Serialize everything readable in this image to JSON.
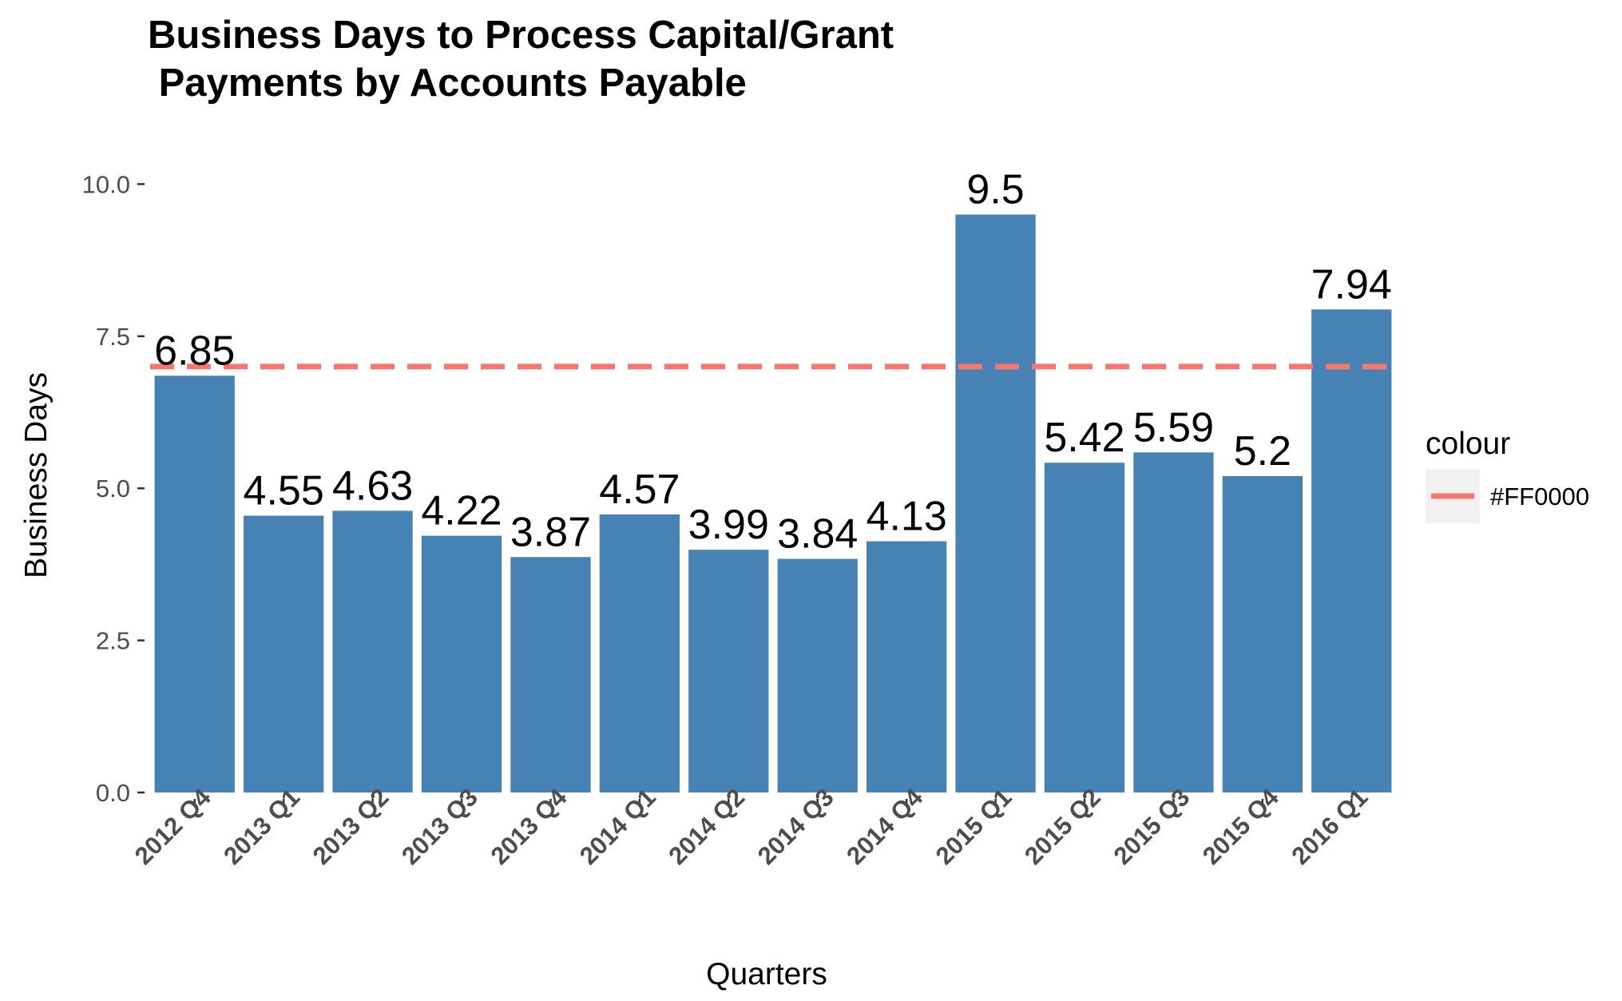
{
  "chart_data": {
    "type": "bar",
    "title_lines": [
      "Business Days to Process Capital/Grant",
      " Payments by Accounts Payable"
    ],
    "xlabel": "Quarters",
    "ylabel": "Business Days",
    "categories": [
      "2012 Q4",
      "2013 Q1",
      "2013 Q2",
      "2013 Q3",
      "2013 Q4",
      "2014 Q1",
      "2014 Q2",
      "2014 Q3",
      "2014 Q4",
      "2015 Q1",
      "2015 Q2",
      "2015 Q3",
      "2015 Q4",
      "2016 Q1"
    ],
    "values": [
      6.85,
      4.55,
      4.63,
      4.22,
      3.87,
      4.57,
      3.99,
      3.84,
      4.13,
      9.5,
      5.42,
      5.59,
      5.2,
      7.94
    ],
    "value_labels": [
      "6.85",
      "4.55",
      "4.63",
      "4.22",
      "3.87",
      "4.57",
      "3.99",
      "3.84",
      "4.13",
      "9.5",
      "5.42",
      "5.59",
      "5.2",
      "7.94"
    ],
    "ylim": [
      0,
      10.4
    ],
    "y_ticks": [
      0,
      2.5,
      5,
      7.5,
      10
    ],
    "y_tick_labels": [
      "0.0",
      "2.5",
      "5.0",
      "7.5",
      "10.0"
    ],
    "grid": false,
    "bar_color": "#4682B4",
    "reference_line": {
      "y": 7,
      "style": "dashed",
      "color": "#F8766D"
    },
    "legend": {
      "title": "colour",
      "position": "right",
      "items": [
        {
          "label": "#FF0000",
          "color": "#F8766D"
        }
      ]
    }
  }
}
